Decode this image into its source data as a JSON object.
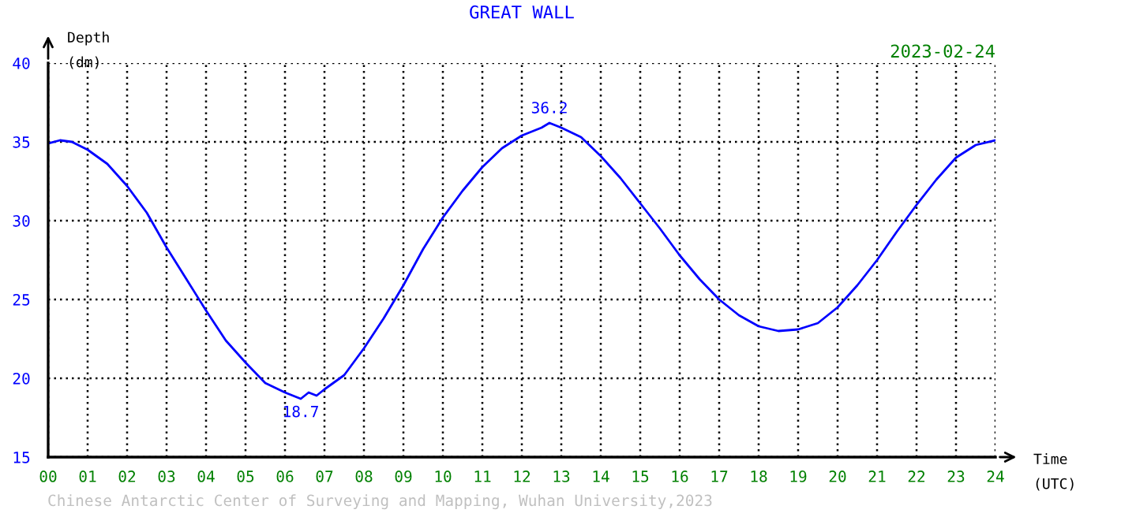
{
  "chart_data": {
    "type": "line",
    "title": "GREAT WALL",
    "xlabel": "Time\n(UTC)",
    "ylabel": "Depth\n(dm)",
    "annotations": [
      "2023-02-24",
      "Chinese Antarctic Center of Surveying and Mapping, Wuhan University,2023",
      {
        "text": "36.2",
        "x": 12.7,
        "y": 36.2
      },
      {
        "text": "18.7",
        "x": 6.4,
        "y": 18.7
      }
    ],
    "series": [
      {
        "color": "#0000ff",
        "x": [
          0,
          0.3,
          0.6,
          1,
          1.5,
          2,
          2.5,
          3,
          3.5,
          4,
          4.5,
          5,
          5.5,
          6,
          6.4,
          6.6,
          6.8,
          7,
          7.5,
          8,
          8.5,
          9,
          9.5,
          10,
          10.5,
          11,
          11.5,
          12,
          12.5,
          12.7,
          13,
          13.5,
          14,
          14.5,
          15,
          15.5,
          16,
          16.5,
          17,
          17.5,
          18,
          18.5,
          19,
          19.5,
          20,
          20.5,
          21,
          21.5,
          22,
          22.5,
          23,
          23.5,
          24
        ],
        "values": [
          34.9,
          35.1,
          35.0,
          34.5,
          33.6,
          32.2,
          30.5,
          28.3,
          26.3,
          24.3,
          22.4,
          21.0,
          19.7,
          19.1,
          18.7,
          19.1,
          18.9,
          19.3,
          20.2,
          21.9,
          23.8,
          25.9,
          28.2,
          30.2,
          31.9,
          33.4,
          34.6,
          35.4,
          35.9,
          36.2,
          35.9,
          35.3,
          34.1,
          32.7,
          31.1,
          29.5,
          27.8,
          26.3,
          25.0,
          24.0,
          23.3,
          23.0,
          23.1,
          23.5,
          24.5,
          25.9,
          27.5,
          29.3,
          31.0,
          32.6,
          34.0,
          34.8,
          35.1
        ]
      }
    ],
    "xlim": [
      0,
      24
    ],
    "ylim": [
      15,
      40
    ],
    "xticks": [
      {
        "value": 0,
        "label": "00"
      },
      {
        "value": 1,
        "label": "01"
      },
      {
        "value": 2,
        "label": "02"
      },
      {
        "value": 3,
        "label": "03"
      },
      {
        "value": 4,
        "label": "04"
      },
      {
        "value": 5,
        "label": "05"
      },
      {
        "value": 6,
        "label": "06"
      },
      {
        "value": 7,
        "label": "07"
      },
      {
        "value": 8,
        "label": "08"
      },
      {
        "value": 9,
        "label": "09"
      },
      {
        "value": 10,
        "label": "10"
      },
      {
        "value": 11,
        "label": "11"
      },
      {
        "value": 12,
        "label": "12"
      },
      {
        "value": 13,
        "label": "13"
      },
      {
        "value": 14,
        "label": "14"
      },
      {
        "value": 15,
        "label": "15"
      },
      {
        "value": 16,
        "label": "16"
      },
      {
        "value": 17,
        "label": "17"
      },
      {
        "value": 18,
        "label": "18"
      },
      {
        "value": 19,
        "label": "19"
      },
      {
        "value": 20,
        "label": "20"
      },
      {
        "value": 21,
        "label": "21"
      },
      {
        "value": 22,
        "label": "22"
      },
      {
        "value": 23,
        "label": "23"
      },
      {
        "value": 24,
        "label": "24"
      }
    ],
    "yticks": [
      15,
      20,
      25,
      30,
      35,
      40
    ],
    "grid": true,
    "marker": "none",
    "line_style": "solid"
  }
}
